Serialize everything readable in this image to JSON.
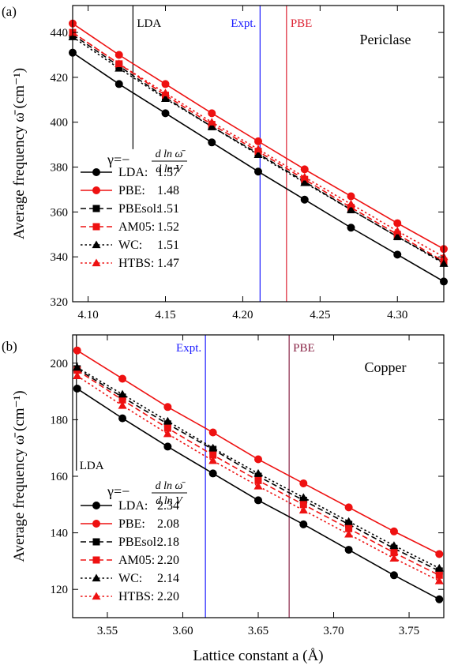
{
  "figure": {
    "xlabel": "Lattice constant a (Å)",
    "ylabel": "Average frequency ω̄ (cm⁻¹)",
    "gamma_symbol": "γ=−",
    "gamma_numerator": "d ln ω̄",
    "gamma_denominator": "d ln V"
  },
  "chart_data": [
    {
      "type": "line",
      "panel_label": "(a)",
      "title": "Periclase",
      "xlabel": "",
      "ylabel": "Average frequency ω̄ (cm⁻¹)",
      "xlim": [
        4.09,
        4.33
      ],
      "ylim": [
        320,
        452
      ],
      "xticks": [
        4.1,
        4.15,
        4.2,
        4.25,
        4.3
      ],
      "xtick_labels": [
        "4.10",
        "4.15",
        "4.20",
        "4.25",
        "4.30"
      ],
      "yticks": [
        320,
        340,
        360,
        380,
        400,
        420,
        440
      ],
      "ytick_labels": [
        "320",
        "340",
        "360",
        "380",
        "400",
        "420",
        "440"
      ],
      "grid": false,
      "x": [
        4.09,
        4.12,
        4.15,
        4.18,
        4.21,
        4.24,
        4.27,
        4.3,
        4.33
      ],
      "vlines": [
        {
          "label": "LDA",
          "x": 4.129,
          "color": "#000000",
          "y_from": 388,
          "y_to": 452
        },
        {
          "label": "Expt.",
          "x": 4.2112,
          "color": "#1a1aff",
          "y_from": 320,
          "y_to": 452
        },
        {
          "label": "PBE",
          "x": 4.2283,
          "color": "#dd2233",
          "y_from": 320,
          "y_to": 452
        }
      ],
      "series": [
        {
          "name": "LDA:",
          "gamma": "1.57",
          "color": "#000000",
          "marker": "circle",
          "dash": "solid",
          "values": [
            431,
            417,
            404,
            391,
            378,
            365.5,
            353,
            341,
            329
          ]
        },
        {
          "name": "PBE:",
          "gamma": "1.48",
          "color": "#ee1111",
          "marker": "circle",
          "dash": "solid",
          "values": [
            444,
            430,
            417,
            404,
            391.5,
            379,
            367,
            355,
            343.5
          ]
        },
        {
          "name": "PBEsol:",
          "gamma": "1.51",
          "color": "#000000",
          "marker": "square",
          "dash": "dashed",
          "values": [
            439,
            425,
            411,
            398,
            386,
            373.5,
            361,
            349,
            337.5
          ]
        },
        {
          "name": "AM05:",
          "gamma": "1.52",
          "color": "#ee1111",
          "marker": "square",
          "dash": "dashed",
          "values": [
            440,
            426,
            412,
            399,
            387,
            374.5,
            362,
            350,
            338
          ]
        },
        {
          "name": "WC:",
          "gamma": "1.51",
          "color": "#000000",
          "marker": "triangle",
          "dash": "dotted",
          "values": [
            438,
            424,
            410.5,
            398,
            385.5,
            373,
            361,
            349,
            337
          ]
        },
        {
          "name": "HTBS:",
          "gamma": "1.47",
          "color": "#ee1111",
          "marker": "triangle",
          "dash": "dotted",
          "values": [
            440,
            426,
            413,
            400,
            388,
            375.5,
            363.5,
            351.5,
            340
          ]
        }
      ]
    },
    {
      "type": "line",
      "panel_label": "(b)",
      "title": "Copper",
      "xlabel": "Lattice constant a (Å)",
      "ylabel": "Average frequency ω̄ (cm⁻¹)",
      "xlim": [
        3.527,
        3.773
      ],
      "ylim": [
        110,
        210
      ],
      "xticks": [
        3.55,
        3.6,
        3.65,
        3.7,
        3.75
      ],
      "xtick_labels": [
        "3.55",
        "3.60",
        "3.65",
        "3.70",
        "3.75"
      ],
      "yticks": [
        120,
        140,
        160,
        180,
        200
      ],
      "ytick_labels": [
        "120",
        "140",
        "160",
        "180",
        "200"
      ],
      "grid": false,
      "x": [
        3.53,
        3.56,
        3.59,
        3.62,
        3.65,
        3.68,
        3.71,
        3.74,
        3.77
      ],
      "vlines": [
        {
          "label": "LDA",
          "x": 3.5295,
          "color": "#000000",
          "y_from": 162,
          "y_to": 210
        },
        {
          "label": "Expt.",
          "x": 3.615,
          "color": "#1a1aff",
          "y_from": 110,
          "y_to": 210
        },
        {
          "label": "PBE",
          "x": 3.6705,
          "color": "#882244",
          "y_from": 110,
          "y_to": 210
        }
      ],
      "series": [
        {
          "name": "LDA:",
          "gamma": "2.34",
          "color": "#000000",
          "marker": "circle",
          "dash": "solid",
          "values": [
            191,
            180.5,
            170.5,
            161,
            151.5,
            143,
            134,
            125,
            116.5
          ]
        },
        {
          "name": "PBE:",
          "gamma": "2.08",
          "color": "#ee1111",
          "marker": "circle",
          "dash": "solid",
          "values": [
            204.5,
            194.5,
            184.5,
            175.5,
            166,
            157.5,
            149,
            140.5,
            132.5
          ]
        },
        {
          "name": "PBEsol:",
          "gamma": "2.18",
          "color": "#000000",
          "marker": "square",
          "dash": "dashed",
          "values": [
            198,
            188,
            178.5,
            169.5,
            160,
            151.5,
            143,
            134.5,
            126.5
          ]
        },
        {
          "name": "AM05:",
          "gamma": "2.20",
          "color": "#ee1111",
          "marker": "square",
          "dash": "dashed",
          "values": [
            197.5,
            187,
            177,
            167.5,
            158.5,
            150,
            141.5,
            133,
            125
          ]
        },
        {
          "name": "WC:",
          "gamma": "2.14",
          "color": "#000000",
          "marker": "triangle",
          "dash": "dotted",
          "values": [
            198.5,
            189,
            179.5,
            170,
            161,
            152.5,
            144,
            135.5,
            127.5
          ]
        },
        {
          "name": "HTBS:",
          "gamma": "2.20",
          "color": "#ee1111",
          "marker": "triangle",
          "dash": "dotted",
          "values": [
            195.5,
            185,
            175,
            165.5,
            156.5,
            148,
            139.5,
            131,
            123
          ]
        }
      ]
    }
  ]
}
